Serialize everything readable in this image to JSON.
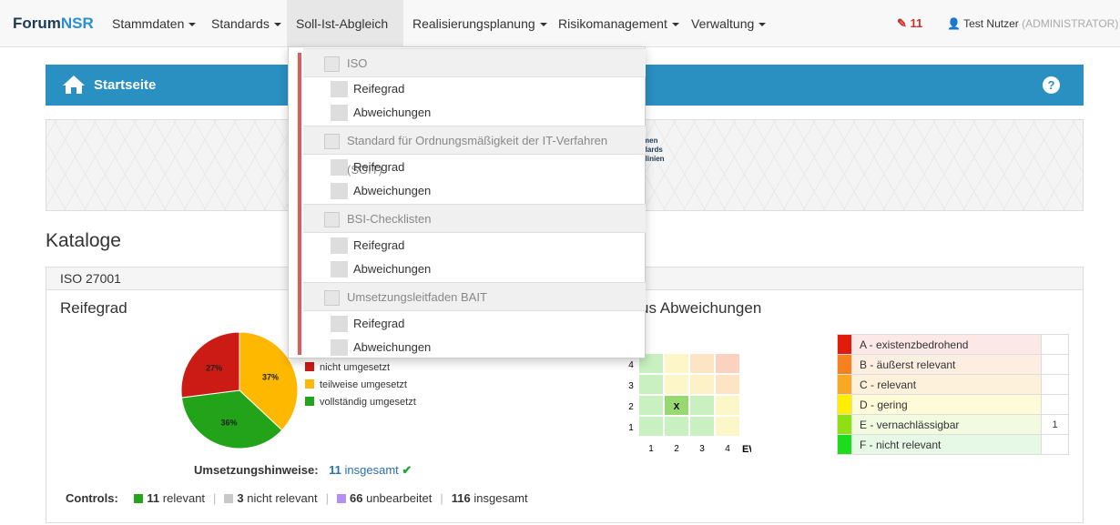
{
  "navbar": {
    "brand_prefix": "Forum",
    "brand_suffix": "NSR",
    "menus": [
      "Stammdaten",
      "Standards",
      "Soll-Ist-Abgleich",
      "Realisierungsplanung",
      "Risikomanagement",
      "Verwaltung"
    ],
    "badge_count": "11",
    "user_name": "Test Nutzer",
    "user_role": "(ADMINISTRATOR)"
  },
  "header": {
    "title": "Startseite",
    "help": "?"
  },
  "banner_lines": [
    "men",
    "dards",
    "tlinien"
  ],
  "catalogs": {
    "title": "Kataloge",
    "panel_title": "ISO 27001",
    "reifegrad_title": "Reifegrad",
    "abweichungen_title": "us Abweichungen"
  },
  "chart_data": {
    "type": "pie",
    "title": "Reifegrad",
    "slices": [
      {
        "label": "nicht umgesetzt",
        "value": 27,
        "color": "#cc1a14"
      },
      {
        "label": "teilweise umgesetzt",
        "value": 37,
        "color": "#ffb800"
      },
      {
        "label": "vollständig umgesetzt",
        "value": 36,
        "color": "#22a31a"
      }
    ]
  },
  "slice_labels": [
    "27%",
    "37%",
    "36%"
  ],
  "hinweise": {
    "label": "Umsetzungshinweise:",
    "count": "11",
    "link_text": "insgesamt"
  },
  "controls": {
    "label": "Controls:",
    "items": [
      {
        "count": "11",
        "text": "relevant",
        "color": "#22a31a"
      },
      {
        "count": "3",
        "text": "nicht relevant",
        "color": "#c8c8c8"
      },
      {
        "count": "66",
        "text": "unbearbeitet",
        "color": "#b48ef0"
      },
      {
        "count": "116",
        "text": "insgesamt",
        "color": ""
      }
    ]
  },
  "matrix": {
    "y_ticks": [
      "4",
      "3",
      "2",
      "1"
    ],
    "x_ticks": [
      "1",
      "2",
      "3",
      "4"
    ],
    "x_label": "EW",
    "mark": "X"
  },
  "risk_classes": [
    {
      "label": "A - existenzbedrohend",
      "color": "#e01c0c",
      "bg": "#fde8e8",
      "count": ""
    },
    {
      "label": "B - äußerst relevant",
      "color": "#f5821f",
      "bg": "#fdeee2",
      "count": ""
    },
    {
      "label": "C - relevant",
      "color": "#f9a825",
      "bg": "#fdf1dc",
      "count": ""
    },
    {
      "label": "D - gering",
      "color": "#ffee00",
      "bg": "#fefbd8",
      "count": ""
    },
    {
      "label": "E - vernachlässigbar",
      "color": "#8ee012",
      "bg": "#f2fbe0",
      "count": "1"
    },
    {
      "label": "F - nicht relevant",
      "color": "#1edb1e",
      "bg": "#e6f9e6",
      "count": ""
    }
  ],
  "dropdown": {
    "groups": [
      {
        "title": "ISO",
        "items": [
          "Reifegrad",
          "Abweichungen"
        ]
      },
      {
        "title": "Standard für Ordnungsmäßigkeit der IT-Verfahren (SOIT)",
        "items": [
          "Reifegrad",
          "Abweichungen"
        ]
      },
      {
        "title": "BSI-Checklisten",
        "items": [
          "Reifegrad",
          "Abweichungen"
        ]
      },
      {
        "title": "Umsetzungsleitfaden BAIT",
        "items": [
          "Reifegrad",
          "Abweichungen"
        ]
      }
    ]
  }
}
